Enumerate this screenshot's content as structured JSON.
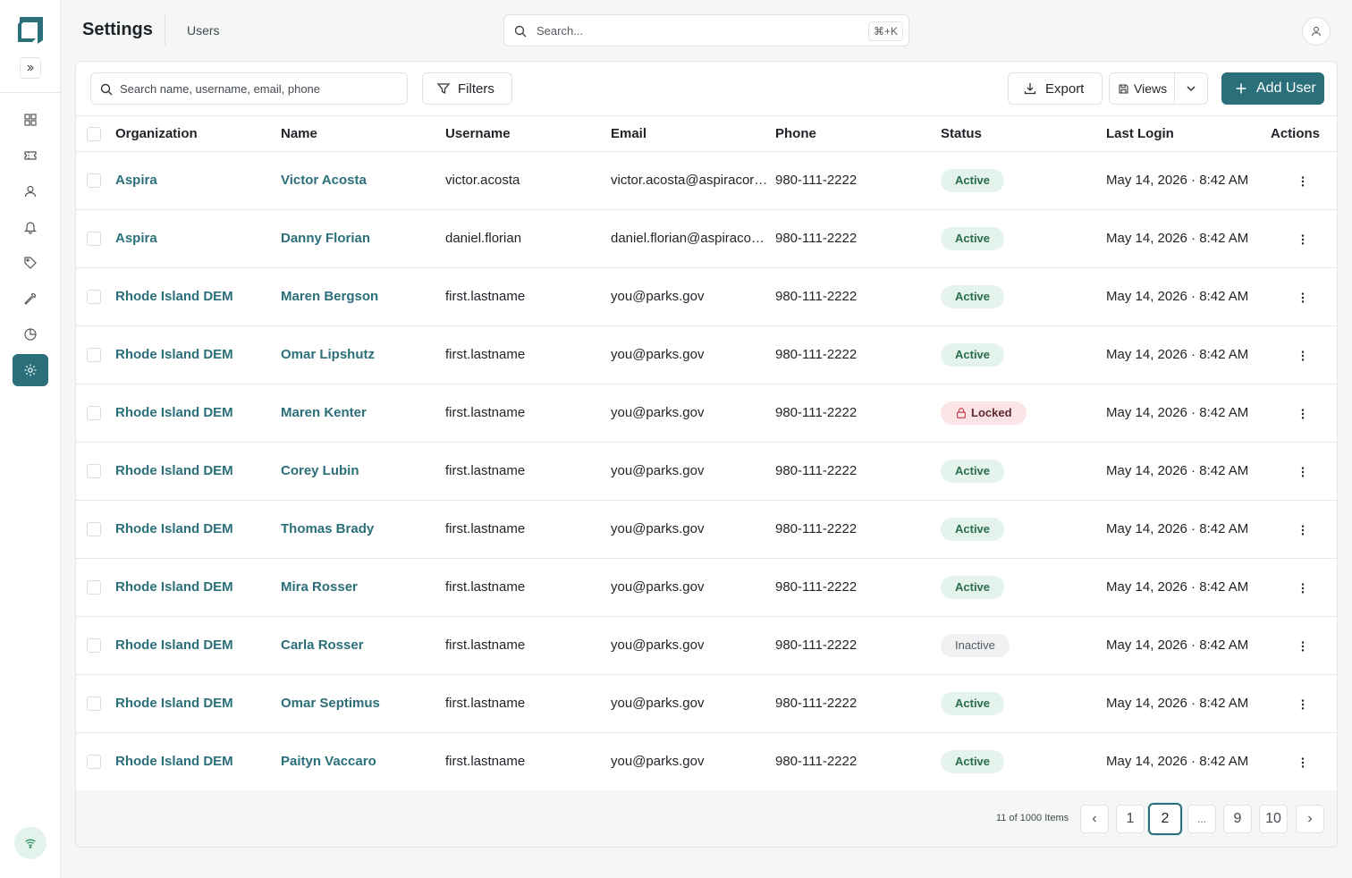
{
  "header": {
    "title": "Settings",
    "breadcrumb": "Users",
    "search_placeholder": "Search...",
    "search_shortcut": "⌘+K"
  },
  "sidebar": {
    "items": [
      {
        "name": "dashboard",
        "icon": "grid-icon",
        "active": false
      },
      {
        "name": "tickets",
        "icon": "ticket-icon",
        "active": false
      },
      {
        "name": "users",
        "icon": "user-icon",
        "active": false
      },
      {
        "name": "alerts",
        "icon": "bell-icon",
        "active": false
      },
      {
        "name": "tags",
        "icon": "tag-icon",
        "active": false
      },
      {
        "name": "tools",
        "icon": "wrench-icon",
        "active": false
      },
      {
        "name": "reports",
        "icon": "pie-chart-icon",
        "active": false
      },
      {
        "name": "settings",
        "icon": "gear-icon",
        "active": true
      }
    ]
  },
  "toolbar": {
    "search_placeholder": "Search name, username, email, phone",
    "filters_label": "Filters",
    "export_label": "Export",
    "views_label": "Views",
    "add_user_label": "Add User"
  },
  "table": {
    "columns": [
      "Organization",
      "Name",
      "Username",
      "Email",
      "Phone",
      "Status",
      "Last Login",
      "Actions"
    ],
    "rows": [
      {
        "org": "Aspira",
        "name": "Victor Acosta",
        "username": "victor.acosta",
        "email": "victor.acosta@aspiracorp.com",
        "phone": "980-111-2222",
        "status": "Active",
        "status_type": "active",
        "last_login": "May 14, 2026 · 8:42 AM"
      },
      {
        "org": "Aspira",
        "name": "Danny Florian",
        "username": "daniel.florian",
        "email": "daniel.florian@aspiracorp.com",
        "phone": "980-111-2222",
        "status": "Active",
        "status_type": "active",
        "last_login": "May 14, 2026 · 8:42 AM"
      },
      {
        "org": "Rhode Island DEM",
        "name": "Maren Bergson",
        "username": "first.lastname",
        "email": "you@parks.gov",
        "phone": "980-111-2222",
        "status": "Active",
        "status_type": "active",
        "last_login": "May 14, 2026 · 8:42 AM"
      },
      {
        "org": "Rhode Island DEM",
        "name": "Omar Lipshutz",
        "username": "first.lastname",
        "email": "you@parks.gov",
        "phone": "980-111-2222",
        "status": "Active",
        "status_type": "active",
        "last_login": "May 14, 2026 · 8:42 AM"
      },
      {
        "org": "Rhode Island DEM",
        "name": "Maren Kenter",
        "username": "first.lastname",
        "email": "you@parks.gov",
        "phone": "980-111-2222",
        "status": "Locked",
        "status_type": "locked",
        "last_login": "May 14, 2026 · 8:42 AM"
      },
      {
        "org": "Rhode Island DEM",
        "name": "Corey Lubin",
        "username": "first.lastname",
        "email": "you@parks.gov",
        "phone": "980-111-2222",
        "status": "Active",
        "status_type": "active",
        "last_login": "May 14, 2026 · 8:42 AM"
      },
      {
        "org": "Rhode Island DEM",
        "name": "Thomas Brady",
        "username": "first.lastname",
        "email": "you@parks.gov",
        "phone": "980-111-2222",
        "status": "Active",
        "status_type": "active",
        "last_login": "May 14, 2026 · 8:42 AM"
      },
      {
        "org": "Rhode Island DEM",
        "name": "Mira Rosser",
        "username": "first.lastname",
        "email": "you@parks.gov",
        "phone": "980-111-2222",
        "status": "Active",
        "status_type": "active",
        "last_login": "May 14, 2026 · 8:42 AM"
      },
      {
        "org": "Rhode Island DEM",
        "name": "Carla Rosser",
        "username": "first.lastname",
        "email": "you@parks.gov",
        "phone": "980-111-2222",
        "status": "Inactive",
        "status_type": "inactive",
        "last_login": "May 14, 2026 · 8:42 AM"
      },
      {
        "org": "Rhode Island DEM",
        "name": "Omar Septimus",
        "username": "first.lastname",
        "email": "you@parks.gov",
        "phone": "980-111-2222",
        "status": "Active",
        "status_type": "active",
        "last_login": "May 14, 2026 · 8:42 AM"
      },
      {
        "org": "Rhode Island DEM",
        "name": "Paityn Vaccaro",
        "username": "first.lastname",
        "email": "you@parks.gov",
        "phone": "980-111-2222",
        "status": "Active",
        "status_type": "active",
        "last_login": "May 14, 2026 · 8:42 AM"
      }
    ]
  },
  "pagination": {
    "summary": "11 of 1000 Items",
    "pages": [
      "1",
      "2",
      "...",
      "9",
      "10"
    ],
    "current": "2"
  },
  "colors": {
    "accent": "#2a6f79",
    "active_badge_bg": "#e4f4ec",
    "locked_badge_bg": "#fbe4e6",
    "inactive_badge_bg": "#f0f1f2"
  }
}
